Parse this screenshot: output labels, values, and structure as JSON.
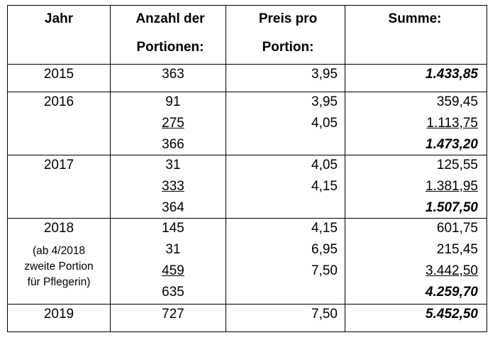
{
  "header": {
    "jahr": "Jahr",
    "anzahl": [
      "Anzahl der",
      "Portionen:"
    ],
    "preis": [
      "Preis pro",
      "Portion:"
    ],
    "summe": "Summe:"
  },
  "rows": [
    {
      "jahr": "2015",
      "lines": [
        {
          "anzahl": "363",
          "preis": "3,95",
          "summe": "1.433,85"
        }
      ]
    },
    {
      "jahr": "2016",
      "lines": [
        {
          "anzahl": "91",
          "preis": "3,95",
          "summe": "359,45"
        },
        {
          "anzahl": "275",
          "preis": "4,05",
          "summe": "1.113,75"
        },
        {
          "anzahl": "366",
          "summe": "1.473,20"
        }
      ]
    },
    {
      "jahr": "2017",
      "lines": [
        {
          "anzahl": "31",
          "preis": "4,05",
          "summe": "125,55"
        },
        {
          "anzahl": "333",
          "preis": "4,15",
          "summe": "1.381,95"
        },
        {
          "anzahl": "364",
          "summe": "1.507,50"
        }
      ]
    },
    {
      "jahr": "2018",
      "note": [
        "(ab 4/2018",
        "zweite Portion",
        "für Pflegerin)"
      ],
      "lines": [
        {
          "anzahl": "145",
          "preis": "4,15",
          "summe": "601,75"
        },
        {
          "anzahl": "31",
          "preis": "6,95",
          "summe": "215,45"
        },
        {
          "anzahl": "459",
          "preis": "7,50",
          "summe": "3.442,50"
        },
        {
          "anzahl": "635",
          "summe": "4.259,70"
        }
      ]
    },
    {
      "jahr": "2019",
      "lines": [
        {
          "anzahl": "727",
          "preis": "7,50",
          "summe": "5.452,50"
        }
      ]
    }
  ]
}
